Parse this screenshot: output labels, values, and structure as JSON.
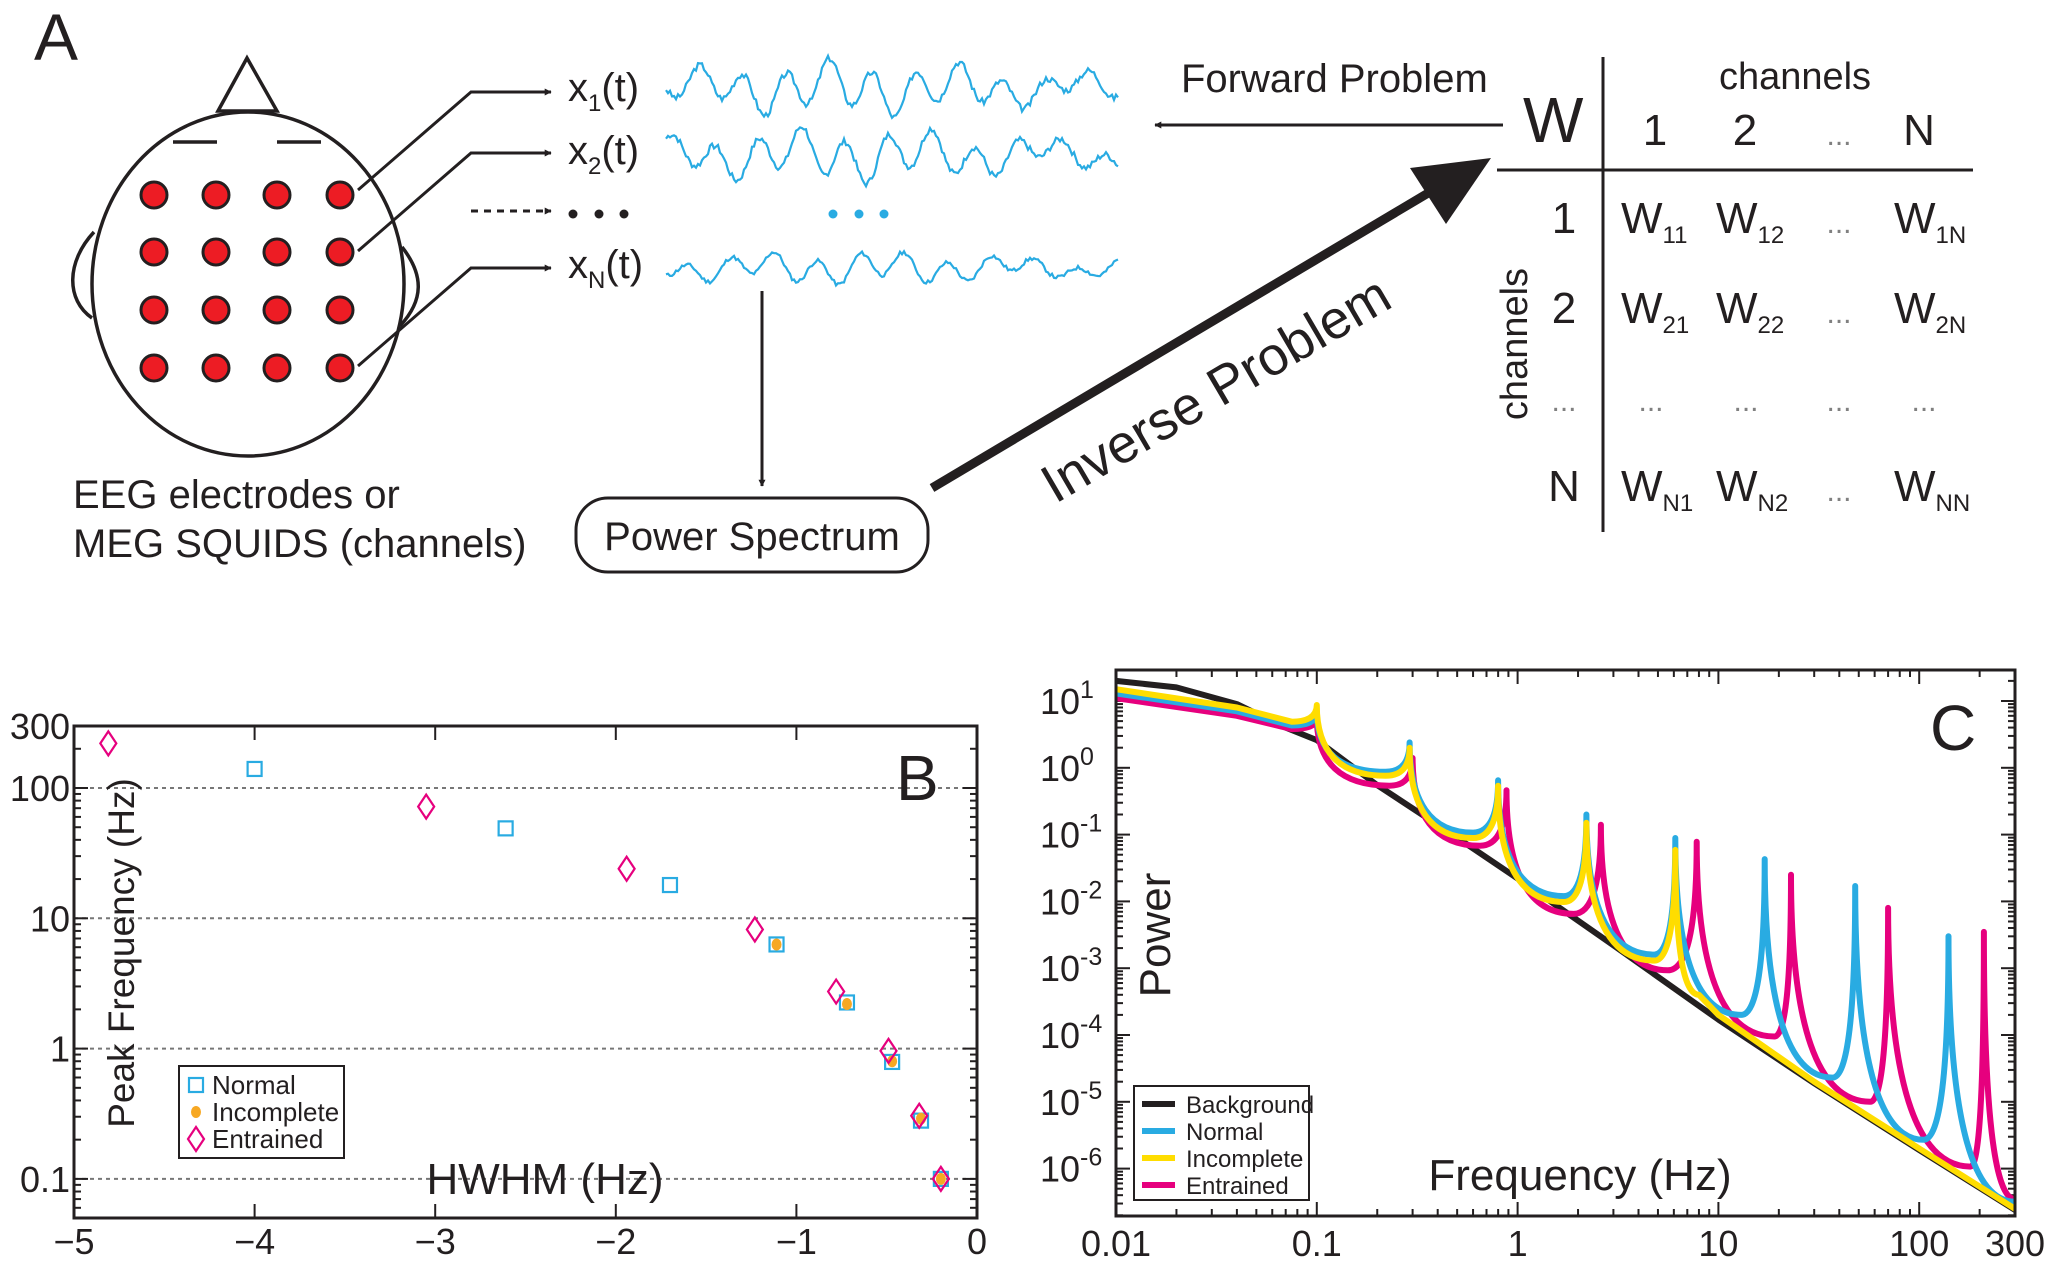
{
  "panel_a": {
    "label": "A",
    "signals": [
      {
        "base": "x",
        "sub": "1",
        "suffix": "(t)"
      },
      {
        "base": "x",
        "sub": "2",
        "suffix": "(t)"
      },
      {
        "base": "x",
        "sub": "N",
        "suffix": "(t)"
      }
    ],
    "caption_lines": [
      "EEG electrodes or",
      "MEG SQUIDS (channels)"
    ],
    "power_spectrum": "Power Spectrum",
    "forward_problem": "Forward Problem",
    "inverse_problem": "Inverse Problem",
    "colors": {
      "electrode": "#ed1c24",
      "signal": "#29abe2",
      "ink": "#231f20",
      "ellipsis": "#808080"
    },
    "matrix": {
      "symbol": "W",
      "col_title": "channels",
      "row_title": "channels",
      "ellipsis": "...",
      "col_headers": [
        "1",
        "2",
        "...",
        "N"
      ],
      "rows": [
        {
          "label": "1",
          "cells": [
            [
              "W",
              "11"
            ],
            [
              "W",
              "12"
            ],
            null,
            [
              "W",
              "1N"
            ]
          ]
        },
        {
          "label": "2",
          "cells": [
            [
              "W",
              "21"
            ],
            [
              "W",
              "22"
            ],
            null,
            [
              "W",
              "2N"
            ]
          ]
        },
        {
          "label": "...",
          "cells": [
            null,
            null,
            null,
            null
          ]
        },
        {
          "label": "N",
          "cells": [
            [
              "W",
              "N1"
            ],
            [
              "W",
              "N2"
            ],
            null,
            [
              "W",
              "NN"
            ]
          ]
        }
      ]
    }
  },
  "chart_data": [
    {
      "type": "scatter",
      "panel_label": "B",
      "xlabel": "HWHM (Hz)",
      "ylabel": "Peak Frequency (Hz)",
      "xscale": "linear",
      "yscale": "log",
      "xlim": [
        -5,
        0
      ],
      "ylim": [
        0.05,
        300
      ],
      "xticks": [
        -5,
        -4,
        -3,
        -2,
        -1,
        0
      ],
      "xtick_labels": [
        "−5",
        "−4",
        "−3",
        "−2",
        "−1",
        "0"
      ],
      "yticks": [
        0.1,
        1,
        10,
        100,
        300
      ],
      "ytick_labels": [
        "0.1",
        "1",
        "10",
        "100",
        "300"
      ],
      "grid": "horizontal dotted at 0.1, 1, 10, 100",
      "legend": "lower-left",
      "series": [
        {
          "name": "Normal",
          "marker": "open-square",
          "color": "#29abe2",
          "x": [
            -4.0,
            -2.61,
            -1.7,
            -1.11,
            -0.72,
            -0.47,
            -0.31,
            -0.2
          ],
          "y": [
            140,
            49,
            18,
            6.3,
            2.26,
            0.79,
            0.28,
            0.1
          ]
        },
        {
          "name": "Incomplete",
          "marker": "filled-circle",
          "color": "#f7a823",
          "x": [
            -1.11,
            -0.72,
            -0.47,
            -0.31,
            -0.2
          ],
          "y": [
            6.3,
            2.2,
            0.8,
            0.29,
            0.1
          ]
        },
        {
          "name": "Entrained",
          "marker": "open-diamond",
          "color": "#e6007e",
          "x": [
            -4.81,
            -3.05,
            -1.94,
            -1.23,
            -0.78,
            -0.49,
            -0.32,
            -0.2
          ],
          "y": [
            220,
            72,
            24,
            8.2,
            2.74,
            0.96,
            0.305,
            0.1
          ]
        }
      ]
    },
    {
      "type": "line",
      "panel_label": "C",
      "xlabel": "Frequency (Hz)",
      "ylabel": "Power",
      "xscale": "log",
      "yscale": "log",
      "xlim": [
        0.01,
        300
      ],
      "ylim": [
        2e-07,
        29
      ],
      "xticks": [
        0.01,
        0.1,
        1,
        10,
        100,
        300
      ],
      "xtick_labels": [
        "0.01",
        "0.1",
        "1",
        "10",
        "100",
        "300"
      ],
      "yticks": [
        1e-06,
        1e-05,
        0.0001,
        0.001,
        0.01,
        0.1,
        1,
        10
      ],
      "ytick_labels": [
        {
          "base": "10",
          "exp": "-6"
        },
        {
          "base": "10",
          "exp": "-5"
        },
        {
          "base": "10",
          "exp": "-4"
        },
        {
          "base": "10",
          "exp": "-3"
        },
        {
          "base": "10",
          "exp": "-2"
        },
        {
          "base": "10",
          "exp": "-1"
        },
        {
          "base": "10",
          "exp": "0"
        },
        {
          "base": "10",
          "exp": "1"
        }
      ],
      "grid": false,
      "legend": "lower-left",
      "series": [
        {
          "name": "Background",
          "color": "#231f20",
          "points": [
            [
              0.01,
              20
            ],
            [
              0.02,
              16
            ],
            [
              0.04,
              9
            ],
            [
              0.07,
              4
            ],
            [
              0.1,
              2.6
            ],
            [
              0.2,
              0.55
            ],
            [
              0.5,
              0.09
            ],
            [
              1,
              0.022
            ],
            [
              3,
              0.0022
            ],
            [
              10,
              0.00017
            ],
            [
              30,
              1.9e-05
            ],
            [
              100,
              1.9e-06
            ],
            [
              300,
              2.4e-07
            ]
          ]
        },
        {
          "name": "Normal",
          "color": "#29abe2",
          "points": [
            [
              0.01,
              13
            ],
            [
              0.04,
              7
            ],
            [
              0.075,
              4.3
            ],
            [
              0.1,
              6.9
            ],
            [
              0.22,
              0.87
            ],
            [
              0.29,
              2.4
            ],
            [
              0.6,
              0.107
            ],
            [
              0.8,
              0.65
            ],
            [
              1.7,
              0.012
            ],
            [
              2.2,
              0.2
            ],
            [
              4.8,
              0.0016
            ],
            [
              6.1,
              0.089
            ],
            [
              13,
              0.0002
            ],
            [
              17,
              0.043
            ],
            [
              37,
              2.3e-05
            ],
            [
              48,
              0.017
            ],
            [
              105,
              2.7e-06
            ],
            [
              140,
              0.003
            ],
            [
              300,
              3.2e-07
            ]
          ]
        },
        {
          "name": "Incomplete",
          "color": "#ffdd00",
          "points": [
            [
              0.01,
              15
            ],
            [
              0.04,
              8
            ],
            [
              0.075,
              4.9
            ],
            [
              0.1,
              8.7
            ],
            [
              0.22,
              0.76
            ],
            [
              0.29,
              2.0
            ],
            [
              0.6,
              0.089
            ],
            [
              0.8,
              0.54
            ],
            [
              1.7,
              0.0098
            ],
            [
              2.2,
              0.15
            ],
            [
              4.8,
              0.0013
            ],
            [
              6.1,
              0.059
            ],
            [
              8,
              0.0004
            ],
            [
              10,
              0.0002
            ],
            [
              30,
              2e-05
            ],
            [
              100,
              2e-06
            ],
            [
              300,
              2.5e-07
            ]
          ]
        },
        {
          "name": "Entrained",
          "color": "#e6007e",
          "points": [
            [
              0.01,
              11
            ],
            [
              0.04,
              6
            ],
            [
              0.075,
              3.8
            ],
            [
              0.1,
              5.6
            ],
            [
              0.23,
              0.54
            ],
            [
              0.3,
              1.4
            ],
            [
              0.65,
              0.068
            ],
            [
              0.88,
              0.46
            ],
            [
              1.9,
              0.0065
            ],
            [
              2.6,
              0.14
            ],
            [
              5.6,
              0.00093
            ],
            [
              7.8,
              0.078
            ],
            [
              19,
              9.5e-05
            ],
            [
              23,
              0.025
            ],
            [
              57,
              1e-05
            ],
            [
              70,
              0.008
            ],
            [
              180,
              1.07e-06
            ],
            [
              210,
              0.0035
            ],
            [
              300,
              3.5e-07
            ]
          ]
        }
      ],
      "draw_order": [
        "Background",
        "Entrained",
        "Normal",
        "Incomplete"
      ]
    }
  ]
}
